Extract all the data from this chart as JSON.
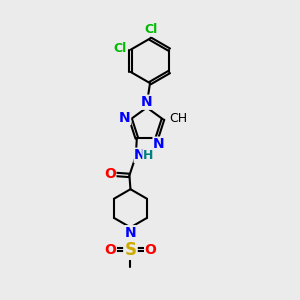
{
  "background_color": "#ebebeb",
  "bond_color": "#000000",
  "bond_width": 1.5,
  "atom_colors": {
    "N_blue": "#0000ff",
    "O_red": "#ff0000",
    "S_yellow": "#ccaa00",
    "Cl_green": "#00bb00",
    "H_teal": "#008080"
  },
  "font_size": 9,
  "fig_width": 3.0,
  "fig_height": 3.0,
  "xlim": [
    0,
    10
  ],
  "ylim": [
    0,
    14
  ]
}
